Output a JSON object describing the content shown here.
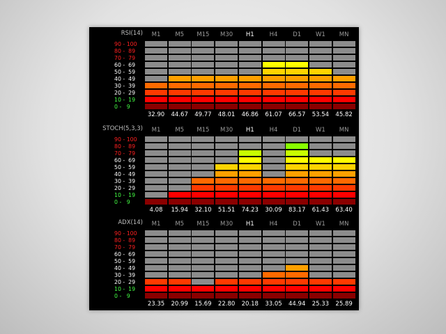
{
  "timeframes": [
    {
      "label": "M1",
      "active": false
    },
    {
      "label": "M5",
      "active": false
    },
    {
      "label": "M15",
      "active": false
    },
    {
      "label": "M30",
      "active": false
    },
    {
      "label": "H1",
      "active": true
    },
    {
      "label": "H4",
      "active": false
    },
    {
      "label": "D1",
      "active": false
    },
    {
      "label": "W1",
      "active": false
    },
    {
      "label": "MN",
      "active": false
    }
  ],
  "ranges": [
    {
      "label": "90 - 100",
      "color": "#ff2020"
    },
    {
      "label": "80 -  89",
      "color": "#ff2020"
    },
    {
      "label": "70 -  79",
      "color": "#ff2020"
    },
    {
      "label": "60 -  69",
      "color": "#ffffff"
    },
    {
      "label": "50 -  59",
      "color": "#ffffff"
    },
    {
      "label": "40 -  49",
      "color": "#ffffff"
    },
    {
      "label": "30 -  39",
      "color": "#ffffff"
    },
    {
      "label": "20 -  29",
      "color": "#ffffff"
    },
    {
      "label": "10 -  19",
      "color": "#44ff44"
    },
    {
      "label": "0 -   9",
      "color": "#44ff44"
    }
  ],
  "level_colors": [
    "#8a0000",
    "#ff0000",
    "#ff3a00",
    "#ff6a00",
    "#ffa000",
    "#ffd400",
    "#ffff00",
    "#c8ff00",
    "#88ff00",
    "#00ff00"
  ],
  "inactive_color": "#8c8c8c",
  "indicators": [
    {
      "title": "RSI(14)",
      "values": [
        "32.90",
        "44.67",
        "49.77",
        "48.01",
        "46.86",
        "61.07",
        "66.57",
        "53.54",
        "45.82"
      ],
      "levels": [
        32.9,
        44.67,
        49.77,
        48.01,
        46.86,
        61.07,
        66.57,
        53.54,
        45.82
      ]
    },
    {
      "title": "STOCH(5,3,3)",
      "values": [
        "4.08",
        "15.94",
        "32.10",
        "51.51",
        "74.23",
        "30.09",
        "83.17",
        "61.43",
        "63.40"
      ],
      "levels": [
        4.08,
        15.94,
        32.1,
        51.51,
        74.23,
        30.09,
        83.17,
        61.43,
        63.4
      ]
    },
    {
      "title": "ADX(14)",
      "values": [
        "23.35",
        "20.99",
        "15.69",
        "22.80",
        "20.18",
        "33.05",
        "44.94",
        "25.33",
        "25.89"
      ],
      "levels": [
        23.35,
        20.99,
        15.69,
        22.8,
        20.18,
        33.05,
        44.94,
        25.33,
        25.89
      ]
    }
  ]
}
